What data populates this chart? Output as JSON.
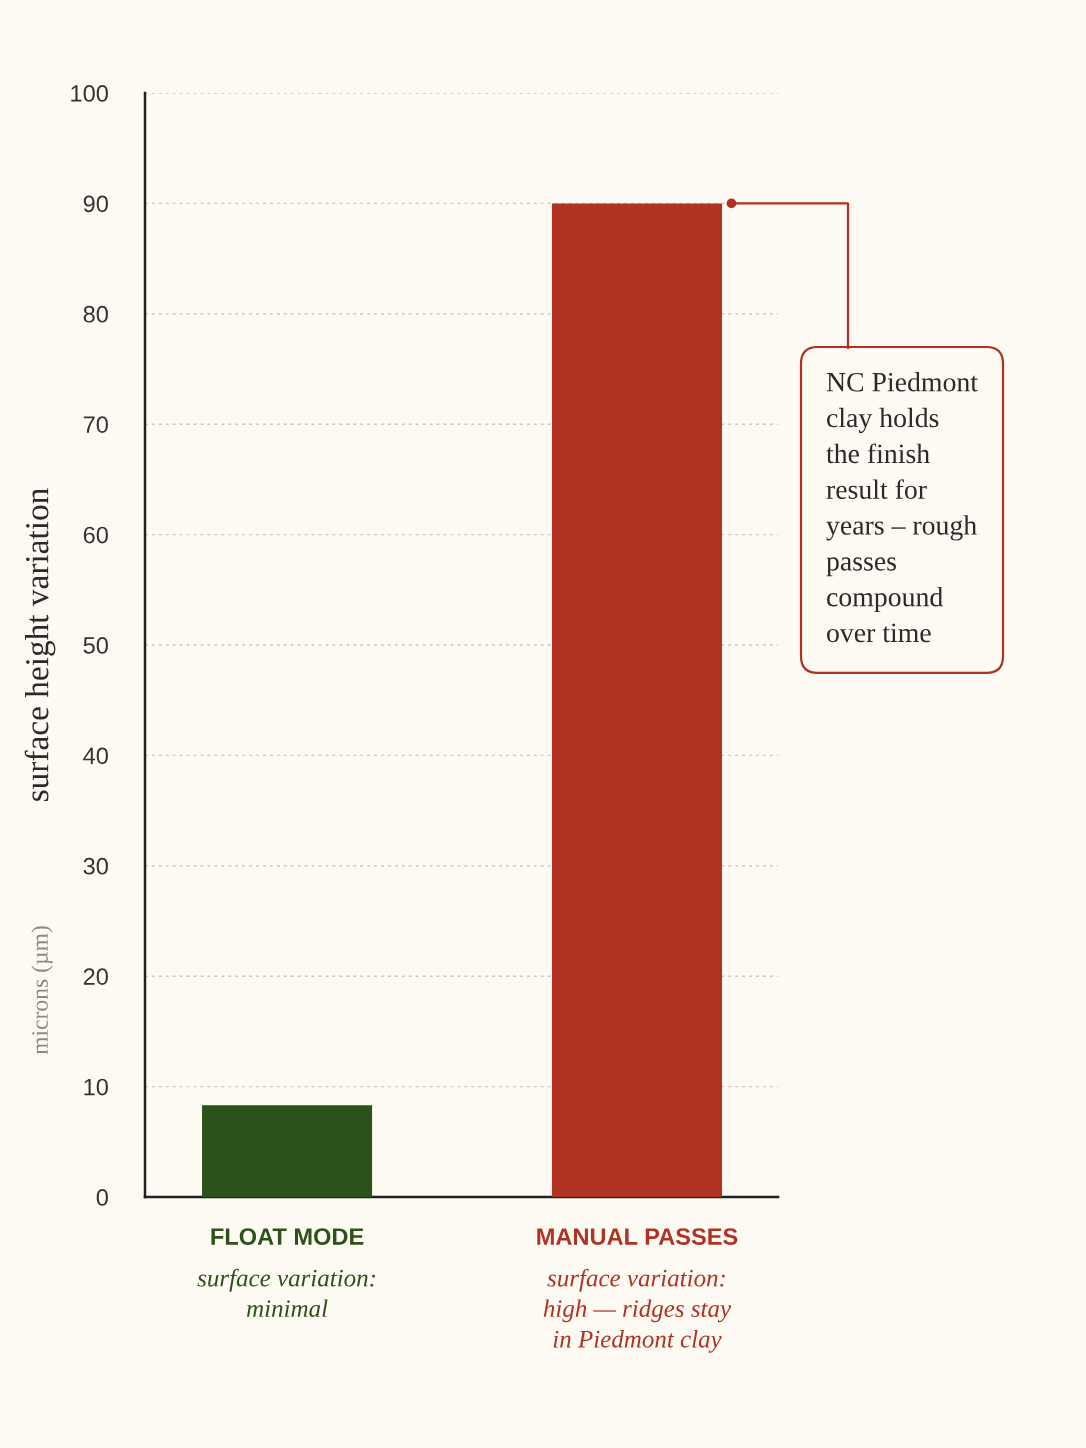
{
  "chart_data": {
    "type": "bar",
    "categories": [
      "FLOAT MODE",
      "MANUAL PASSES"
    ],
    "values": [
      8.3,
      90
    ],
    "colors": [
      "#2d5219",
      "#b03222"
    ],
    "ylabel": "surface height variation",
    "ylim": [
      0,
      100
    ],
    "yticks": [
      0,
      10,
      20,
      30,
      40,
      50,
      60,
      70,
      80,
      90,
      100
    ],
    "grid": "y",
    "annotations": [
      "microns (µm)",
      "surface variation:\nminimal",
      "surface variation:\nhigh — ridges stay\nin Piedmont clay",
      "NC Piedmont\nclay holds\nthe finish\nresult for\nyears – rough\npasses\ncompound\nover time"
    ]
  }
}
